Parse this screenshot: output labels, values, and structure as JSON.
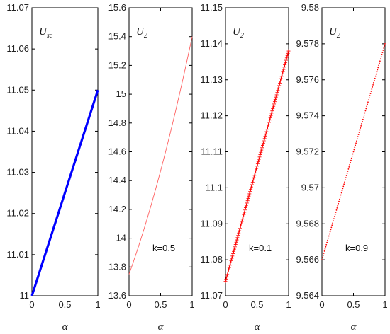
{
  "chart_data": [
    {
      "type": "line",
      "label_main": "U",
      "label_sub": "sc",
      "annotation": "",
      "xlabel": "α",
      "xlim": [
        0,
        1
      ],
      "ylim": [
        11,
        11.07
      ],
      "xticks": [
        "0",
        "0.5",
        "1"
      ],
      "yticks": [
        "11",
        "11.01",
        "11.02",
        "11.03",
        "11.04",
        "11.05",
        "11.06",
        "11.07"
      ],
      "series": [
        {
          "color": "#0000ff",
          "style": "thick",
          "x": [
            0,
            1
          ],
          "y": [
            11.0,
            11.05
          ],
          "curve": 0
        }
      ]
    },
    {
      "type": "line",
      "label_main": "U",
      "label_sub": "2",
      "annotation": "k=0.5",
      "xlabel": "α",
      "xlim": [
        0,
        1
      ],
      "ylim": [
        13.6,
        15.6
      ],
      "xticks": [
        "0",
        "0.5",
        "1"
      ],
      "yticks": [
        "13.6",
        "13.8",
        "14",
        "14.2",
        "14.4",
        "14.6",
        "14.8",
        "15",
        "15.2",
        "15.4",
        "15.6"
      ],
      "series": [
        {
          "color": "#ff6060",
          "style": "thin",
          "x": [
            0,
            1
          ],
          "y": [
            13.75,
            15.4
          ],
          "curve": -0.13
        }
      ]
    },
    {
      "type": "line",
      "label_main": "U",
      "label_sub": "2",
      "annotation": "k=0.1",
      "xlabel": "α",
      "xlim": [
        0,
        1
      ],
      "ylim": [
        11.07,
        11.15
      ],
      "xticks": [
        "0",
        "0.5",
        "1"
      ],
      "yticks": [
        "11.07",
        "11.08",
        "11.09",
        "11.1",
        "11.11",
        "11.12",
        "11.13",
        "11.14",
        "11.15"
      ],
      "series": [
        {
          "color": "#ff0000",
          "style": "plus",
          "x": [
            0,
            1
          ],
          "y": [
            11.074,
            11.138
          ],
          "curve": 0
        }
      ]
    },
    {
      "type": "line",
      "label_main": "U",
      "label_sub": "2",
      "annotation": "k=0.9",
      "xlabel": "α",
      "xlim": [
        0,
        1
      ],
      "ylim": [
        9.564,
        9.58
      ],
      "xticks": [
        "0",
        "0.5",
        "1"
      ],
      "yticks": [
        "9.564",
        "9.566",
        "9.568",
        "9.57",
        "9.572",
        "9.574",
        "9.576",
        "9.578",
        "9.58"
      ],
      "series": [
        {
          "color": "#ff0000",
          "style": "dots",
          "x": [
            0,
            1
          ],
          "y": [
            9.566,
            9.578
          ],
          "curve": 0
        }
      ]
    }
  ]
}
